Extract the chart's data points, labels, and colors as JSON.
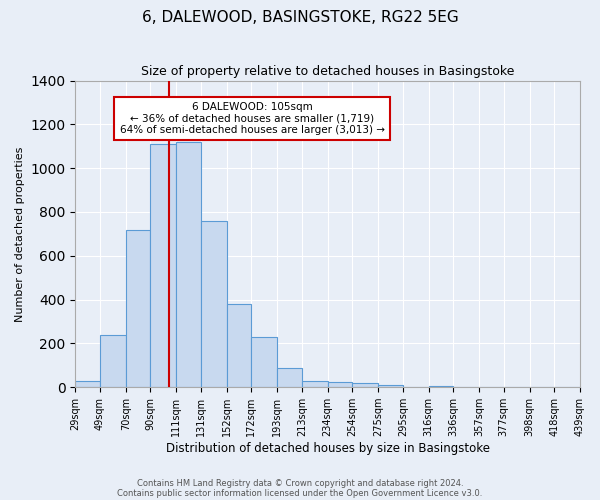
{
  "title": "6, DALEWOOD, BASINGSTOKE, RG22 5EG",
  "subtitle": "Size of property relative to detached houses in Basingstoke",
  "xlabel": "Distribution of detached houses by size in Basingstoke",
  "ylabel": "Number of detached properties",
  "bar_color": "#c8d9ef",
  "bar_edge_color": "#5b9bd5",
  "bg_color": "#e8eef7",
  "grid_color": "#ffffff",
  "annotation_box_color": "#ffffff",
  "annotation_box_edge": "#cc0000",
  "red_line_x": 105,
  "property_size": 105,
  "bins": [
    29,
    49,
    70,
    90,
    111,
    131,
    152,
    172,
    193,
    213,
    234,
    254,
    275,
    295,
    316,
    336,
    357,
    377,
    398,
    418,
    439
  ],
  "counts": [
    30,
    240,
    720,
    1110,
    1120,
    760,
    380,
    228,
    90,
    30,
    25,
    20,
    10,
    0,
    5,
    0,
    0,
    0,
    0,
    0
  ],
  "tick_labels": [
    "29sqm",
    "49sqm",
    "70sqm",
    "90sqm",
    "111sqm",
    "131sqm",
    "152sqm",
    "172sqm",
    "193sqm",
    "213sqm",
    "234sqm",
    "254sqm",
    "275sqm",
    "295sqm",
    "316sqm",
    "336sqm",
    "357sqm",
    "377sqm",
    "398sqm",
    "418sqm",
    "439sqm"
  ],
  "annotation_line1": "6 DALEWOOD: 105sqm",
  "annotation_line2": "← 36% of detached houses are smaller (1,719)",
  "annotation_line3": "64% of semi-detached houses are larger (3,013) →",
  "ylim": [
    0,
    1400
  ],
  "yticks": [
    0,
    200,
    400,
    600,
    800,
    1000,
    1200,
    1400
  ],
  "footer1": "Contains HM Land Registry data © Crown copyright and database right 2024.",
  "footer2": "Contains public sector information licensed under the Open Government Licence v3.0."
}
